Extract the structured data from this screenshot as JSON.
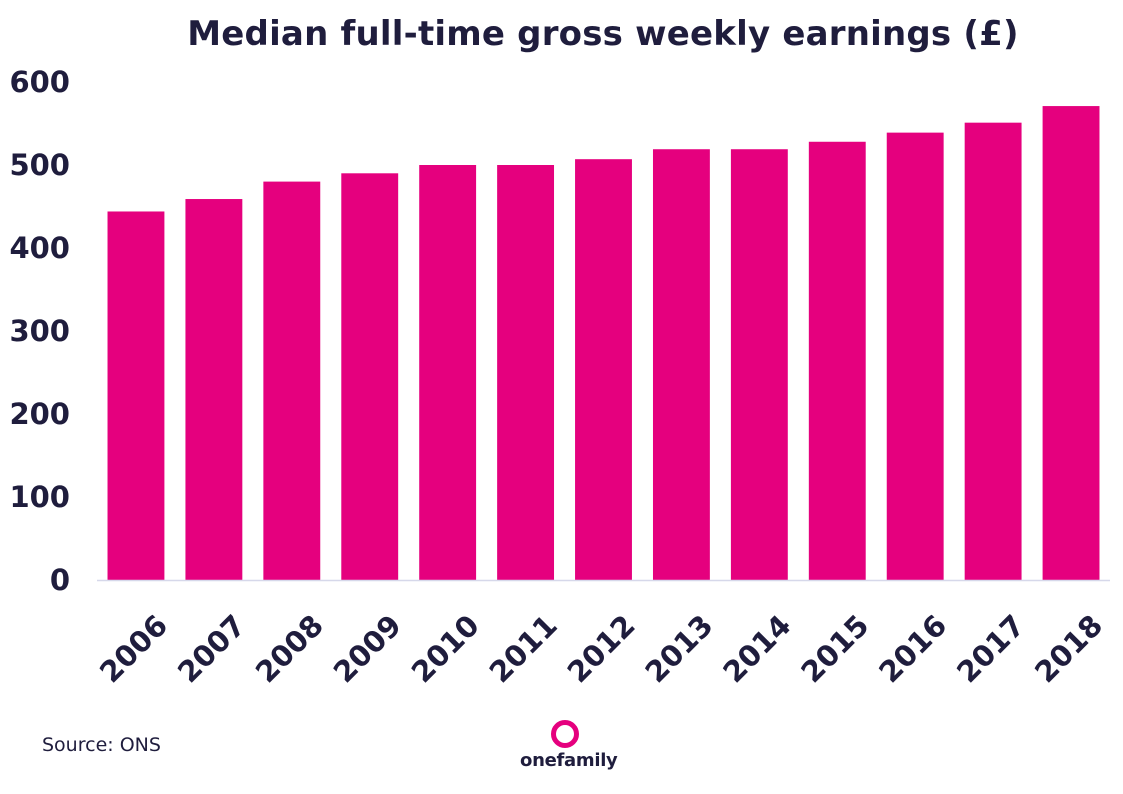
{
  "chart_data": {
    "type": "bar",
    "title": "Median full-time gross weekly earnings (£)",
    "xlabel": "",
    "ylabel": "",
    "categories": [
      "2006",
      "2007",
      "2008",
      "2009",
      "2010",
      "2011",
      "2012",
      "2013",
      "2014",
      "2015",
      "2016",
      "2017",
      "2018"
    ],
    "values": [
      444,
      459,
      480,
      490,
      500,
      500,
      507,
      519,
      519,
      528,
      539,
      551,
      571
    ],
    "ylim": [
      0,
      600
    ],
    "yticks": [
      0,
      100,
      200,
      300,
      400,
      500,
      600
    ],
    "grid": false,
    "bar_color": "#e5007e"
  },
  "footer": {
    "source": "Source: ONS",
    "brand": "onefamily"
  },
  "colors": {
    "accent": "#e5007e",
    "text": "#1f1d3d",
    "axis": "#d6d8ea"
  }
}
